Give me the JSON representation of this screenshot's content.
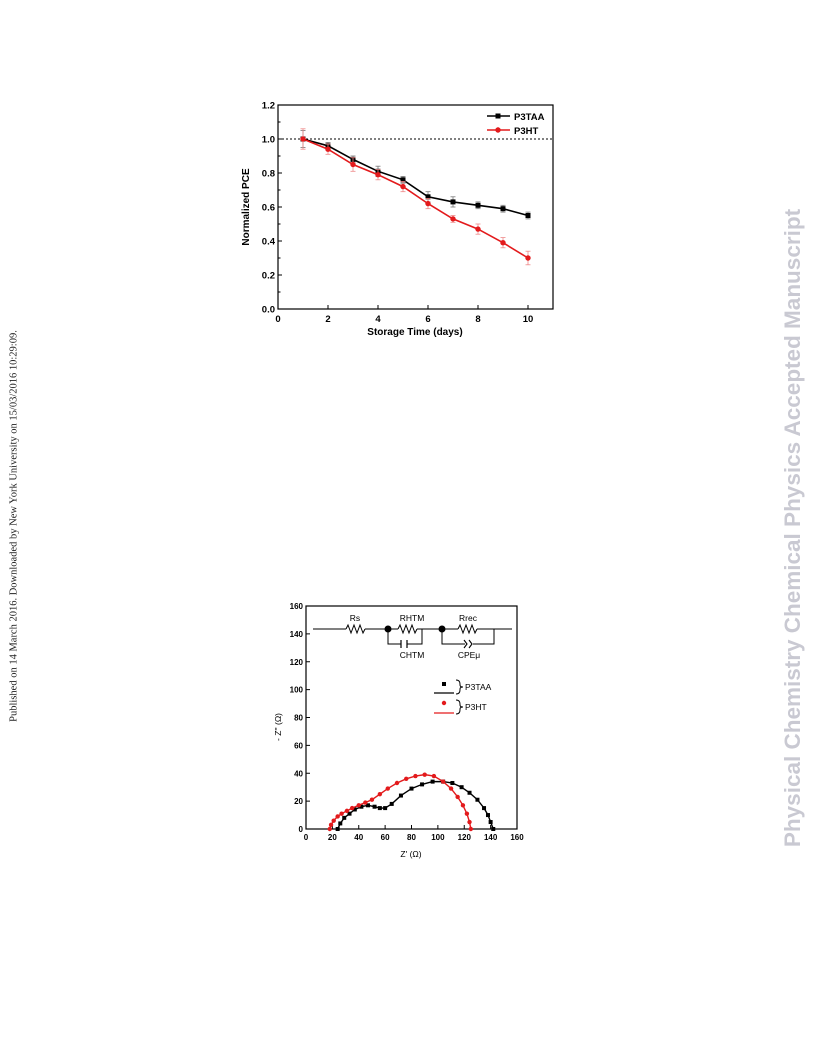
{
  "page": {
    "side_note": "Published on 14 March 2016. Downloaded by New York University on 15/03/2016 10:29:09.",
    "watermark": "Physical Chemistry Chemical Physics Accepted Manuscript"
  },
  "colors": {
    "P3TAA": "#000000",
    "P3HT": "#e31a1c"
  },
  "chart_data": [
    {
      "type": "line",
      "xlabel": "Storage Time (days)",
      "ylabel": "Normalized PCE",
      "xlim": [
        0,
        11
      ],
      "ylim": [
        0.0,
        1.2
      ],
      "xticks": [
        "0",
        "2",
        "4",
        "6",
        "8",
        "10"
      ],
      "yticks": [
        "0.0",
        "0.2",
        "0.4",
        "0.6",
        "0.8",
        "1.0",
        "1.2"
      ],
      "reference_line": 1.0,
      "legend": "top-right",
      "x": [
        1,
        2,
        3,
        4,
        5,
        6,
        7,
        8,
        9,
        10
      ],
      "series": [
        {
          "name": "P3TAA",
          "color": "#000000",
          "values": [
            1.0,
            0.96,
            0.88,
            0.81,
            0.76,
            0.66,
            0.63,
            0.61,
            0.59,
            0.55
          ],
          "errors": [
            0.05,
            0.02,
            0.02,
            0.03,
            0.02,
            0.03,
            0.03,
            0.02,
            0.02,
            0.02
          ]
        },
        {
          "name": "P3HT",
          "color": "#e31a1c",
          "values": [
            1.0,
            0.94,
            0.85,
            0.79,
            0.72,
            0.62,
            0.53,
            0.47,
            0.39,
            0.3
          ],
          "errors": [
            0.06,
            0.03,
            0.04,
            0.03,
            0.03,
            0.03,
            0.02,
            0.03,
            0.03,
            0.04
          ]
        }
      ]
    },
    {
      "type": "scatter",
      "xlabel": "Z' (Ω)",
      "ylabel": "- Z'' (Ω)",
      "xlim": [
        0,
        160
      ],
      "ylim": [
        0,
        160
      ],
      "xticks": [
        "0",
        "20",
        "40",
        "60",
        "80",
        "100",
        "120",
        "140",
        "160"
      ],
      "yticks": [
        "0",
        "20",
        "40",
        "60",
        "80",
        "100",
        "120",
        "140",
        "160"
      ],
      "legend": "right",
      "circuit_labels": {
        "rs": "Rs",
        "rhtm": "RHTM",
        "chtm": "CHTM",
        "rrec": "Rrec",
        "cpe": "CPEμ"
      },
      "series": [
        {
          "name": "P3TAA",
          "color": "#000000",
          "x": [
            24,
            26,
            29,
            33,
            37,
            42,
            47,
            52,
            56,
            60,
            65,
            72,
            80,
            88,
            96,
            104,
            111,
            118,
            124,
            130,
            135,
            138,
            140,
            142
          ],
          "y": [
            0,
            4,
            8,
            11,
            14,
            16,
            17,
            16,
            15,
            15,
            18,
            24,
            29,
            32,
            34,
            34,
            33,
            30,
            26,
            21,
            15,
            10,
            5,
            0
          ]
        },
        {
          "name": "P3HT",
          "color": "#e31a1c",
          "x": [
            18,
            19,
            21,
            24,
            27,
            31,
            35,
            40,
            45,
            50,
            56,
            62,
            69,
            76,
            83,
            90,
            97,
            104,
            110,
            115,
            119,
            122,
            124,
            125
          ],
          "y": [
            0,
            3,
            6,
            9,
            11,
            13,
            15,
            17,
            19,
            21,
            25,
            29,
            33,
            36,
            38,
            39,
            38,
            34,
            29,
            23,
            17,
            11,
            5,
            0
          ]
        }
      ]
    }
  ]
}
